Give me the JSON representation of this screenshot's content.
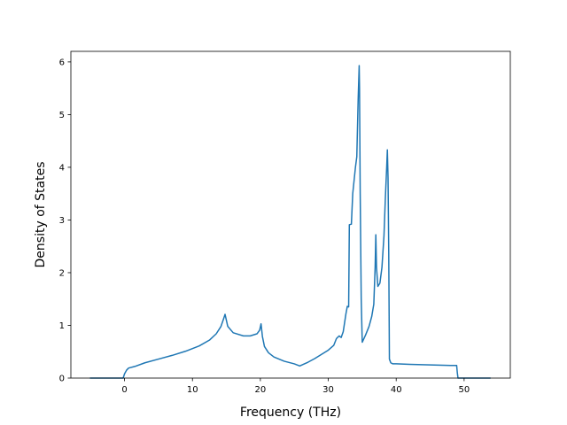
{
  "chart_data": {
    "type": "line",
    "title": "",
    "xlabel": "Frequency (THz)",
    "ylabel": "Density of States",
    "xlim": [
      -7.9,
      56.8
    ],
    "ylim": [
      0,
      6.2
    ],
    "xticks": [
      0,
      10,
      20,
      30,
      40,
      50
    ],
    "yticks": [
      0,
      1,
      2,
      3,
      4,
      5,
      6
    ],
    "grid": false,
    "legend": "none",
    "series": [
      {
        "color": "#1f77b4",
        "x": [
          -5.0,
          -0.2,
          0.0,
          0.3,
          0.6,
          1.5,
          3.0,
          5.0,
          7.0,
          9.0,
          11.0,
          12.5,
          13.5,
          14.2,
          14.6,
          14.8,
          15.2,
          16.0,
          17.5,
          18.5,
          19.5,
          19.9,
          20.1,
          20.3,
          20.6,
          21.2,
          22.0,
          23.5,
          25.0,
          25.8,
          26.3,
          27.0,
          28.0,
          29.0,
          30.0,
          30.8,
          31.2,
          31.6,
          31.9,
          32.2,
          32.6,
          32.8,
          33.0,
          33.1,
          33.4,
          33.6,
          34.0,
          34.2,
          34.4,
          34.55,
          34.6,
          34.7,
          34.85,
          35.0,
          35.5,
          36.0,
          36.4,
          36.7,
          36.9,
          37.0,
          37.1,
          37.3,
          37.6,
          37.9,
          38.2,
          38.4,
          38.6,
          38.7,
          38.8,
          38.9,
          39.0,
          39.2,
          39.5,
          40.0,
          42.0,
          45.0,
          48.0,
          48.9,
          49.0,
          49.1,
          50.0,
          53.8
        ],
        "y": [
          0.0,
          0.0,
          0.08,
          0.15,
          0.19,
          0.22,
          0.29,
          0.36,
          0.43,
          0.51,
          0.61,
          0.72,
          0.84,
          0.98,
          1.13,
          1.21,
          0.98,
          0.86,
          0.8,
          0.8,
          0.84,
          0.91,
          1.03,
          0.79,
          0.6,
          0.48,
          0.4,
          0.32,
          0.27,
          0.23,
          0.26,
          0.3,
          0.37,
          0.45,
          0.53,
          0.62,
          0.75,
          0.8,
          0.77,
          0.88,
          1.22,
          1.36,
          1.35,
          2.91,
          2.92,
          3.5,
          4.0,
          4.2,
          5.3,
          5.93,
          5.5,
          3.5,
          1.5,
          0.68,
          0.82,
          0.98,
          1.17,
          1.4,
          2.1,
          2.72,
          2.1,
          1.74,
          1.8,
          2.1,
          2.7,
          3.4,
          4.0,
          4.33,
          3.8,
          2.4,
          0.36,
          0.29,
          0.27,
          0.27,
          0.26,
          0.25,
          0.24,
          0.24,
          0.1,
          0.0,
          0.0,
          0.0
        ]
      }
    ]
  }
}
